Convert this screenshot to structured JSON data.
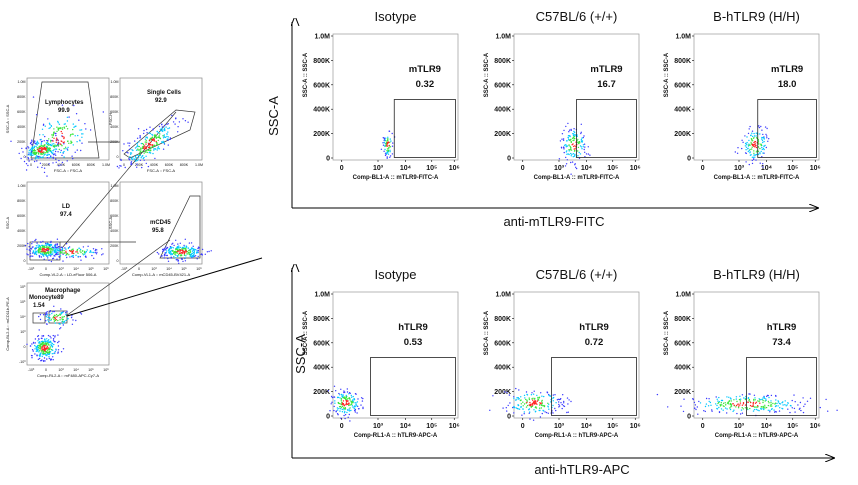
{
  "colors": {
    "ink": "#111111",
    "axis": "#000000",
    "density_low": "#3a3aff",
    "density_mid": "#00c8ff",
    "density_high": "#39e639",
    "density_peak": "#ff2020"
  },
  "gating": [
    {
      "gate_label": "Lymphocytes",
      "gate_value": "99.9",
      "xlabel": "FSC-A :: FSC-A",
      "ylabel": "SSC-A :: SSC-A",
      "xticks": [
        "0",
        "200K",
        "400K",
        "600K",
        "800K",
        "1.0M"
      ],
      "yticks": [
        "0",
        "200K",
        "400K",
        "600K",
        "800K",
        "1.0M"
      ]
    },
    {
      "gate_label": "Single Cells",
      "gate_value": "92.9",
      "xlabel": "FSC-A :: FSC-A",
      "ylabel": "FSC-H",
      "xticks": [
        "0",
        "200K",
        "400K",
        "600K",
        "800K",
        "1.0M"
      ],
      "yticks": [
        "0",
        "200K",
        "400K",
        "600K",
        "800K",
        "1.0M"
      ]
    },
    {
      "gate_label": "LD",
      "gate_value": "97.4",
      "xlabel": "Comp-VL2-A :: LD-eFluor 506-A",
      "ylabel": "SSC-A",
      "xticks": [
        "-10³",
        "0",
        "10³",
        "10⁴",
        "10⁵",
        "10⁶"
      ],
      "yticks": [
        "0",
        "200K",
        "400K",
        "600K",
        "800K",
        "1.0M"
      ]
    },
    {
      "gate_label": "mCD45",
      "gate_value": "95.8",
      "xlabel": "Comp-VL1-A :: mCD45-BV421-A",
      "ylabel": "SSC-A",
      "xticks": [
        "-10³",
        "0",
        "10³",
        "10⁴",
        "10⁵",
        "10⁶"
      ],
      "yticks": [
        "0",
        "200K",
        "400K",
        "600K",
        "800K",
        "1.0M"
      ]
    },
    {
      "gate_label": "Macrophage",
      "gate_value": "",
      "gate2_label": "Monocyte",
      "gate2_value": "1.54",
      "gate3_value": "89",
      "xlabel": "Comp-RL2-A :: mF480-APC-Cy7-A",
      "ylabel": "Comp-BL2-A :: mCD11b-PE-A",
      "xticks": [
        "-10³",
        "0",
        "10³",
        "10⁴",
        "10⁵",
        "10⁶"
      ],
      "yticks": [
        "-10³",
        "0",
        "10³",
        "10⁴",
        "10⁵",
        "10⁶"
      ]
    }
  ],
  "panel_top": {
    "xlabel": "anti-mTLR9-FITC",
    "ylabel": "SSC-A",
    "plots": [
      {
        "title": "Isotype",
        "gate_label": "mTLR9",
        "gate_value": "0.32",
        "axis_x": "Comp-BL1-A :: mTLR9-FITC-A",
        "axis_y": "SSC-A :: SSC-A"
      },
      {
        "title": "C57BL/6 (+/+)",
        "gate_label": "mTLR9",
        "gate_value": "16.7",
        "axis_x": "Comp-BL1-A :: mTLR9-FITC-A",
        "axis_y": "SSC-A :: SSC-A"
      },
      {
        "title": "B-hTLR9  (H/H)",
        "gate_label": "mTLR9",
        "gate_value": "18.0",
        "axis_x": "Comp-BL1-A :: mTLR9-FITC-A",
        "axis_y": "SSC-A :: SSC-A"
      }
    ]
  },
  "panel_bottom": {
    "xlabel": "anti-hTLR9-APC",
    "ylabel": "SSC-A",
    "plots": [
      {
        "title": "Isotype",
        "gate_label": "hTLR9",
        "gate_value": "0.53",
        "axis_x": "Comp-RL1-A :: hTLR9-APC-A",
        "axis_y": "SSC-A :: SSC-A"
      },
      {
        "title": "C57BL/6 (+/+)",
        "gate_label": "hTLR9",
        "gate_value": "0.72",
        "axis_x": "Comp-RL1-A :: hTLR9-APC-A",
        "axis_y": "SSC-A :: SSC-A"
      },
      {
        "title": "B-hTLR9  (H/H)",
        "gate_label": "hTLR9",
        "gate_value": "73.4",
        "axis_x": "Comp-RL1-A :: hTLR9-APC-A",
        "axis_y": "SSC-A :: SSC-A"
      }
    ]
  },
  "plot_ticks": {
    "x": [
      "0",
      "10³",
      "10⁴",
      "10⁵",
      "10⁶"
    ],
    "y": [
      "0",
      "200K",
      "400K",
      "600K",
      "800K",
      "1.0M"
    ]
  },
  "chart_data": [
    {
      "type": "scatter",
      "title": "Isotype",
      "xlabel": "Comp-BL1-A :: mTLR9-FITC-A",
      "ylabel": "SSC-A :: SSC-A",
      "gate": "mTLR9",
      "gate_percent": 0.32
    },
    {
      "type": "scatter",
      "title": "C57BL/6 (+/+)",
      "xlabel": "Comp-BL1-A :: mTLR9-FITC-A",
      "ylabel": "SSC-A :: SSC-A",
      "gate": "mTLR9",
      "gate_percent": 16.7
    },
    {
      "type": "scatter",
      "title": "B-hTLR9  (H/H)",
      "xlabel": "Comp-BL1-A :: mTLR9-FITC-A",
      "ylabel": "SSC-A :: SSC-A",
      "gate": "mTLR9",
      "gate_percent": 18.0
    },
    {
      "type": "scatter",
      "title": "Isotype",
      "xlabel": "Comp-RL1-A :: hTLR9-APC-A",
      "ylabel": "SSC-A :: SSC-A",
      "gate": "hTLR9",
      "gate_percent": 0.53
    },
    {
      "type": "scatter",
      "title": "C57BL/6 (+/+)",
      "xlabel": "Comp-RL1-A :: hTLR9-APC-A",
      "ylabel": "SSC-A :: SSC-A",
      "gate": "hTLR9",
      "gate_percent": 0.72
    },
    {
      "type": "scatter",
      "title": "B-hTLR9  (H/H)",
      "xlabel": "Comp-RL1-A :: hTLR9-APC-A",
      "ylabel": "SSC-A :: SSC-A",
      "gate": "hTLR9",
      "gate_percent": 73.4
    }
  ]
}
